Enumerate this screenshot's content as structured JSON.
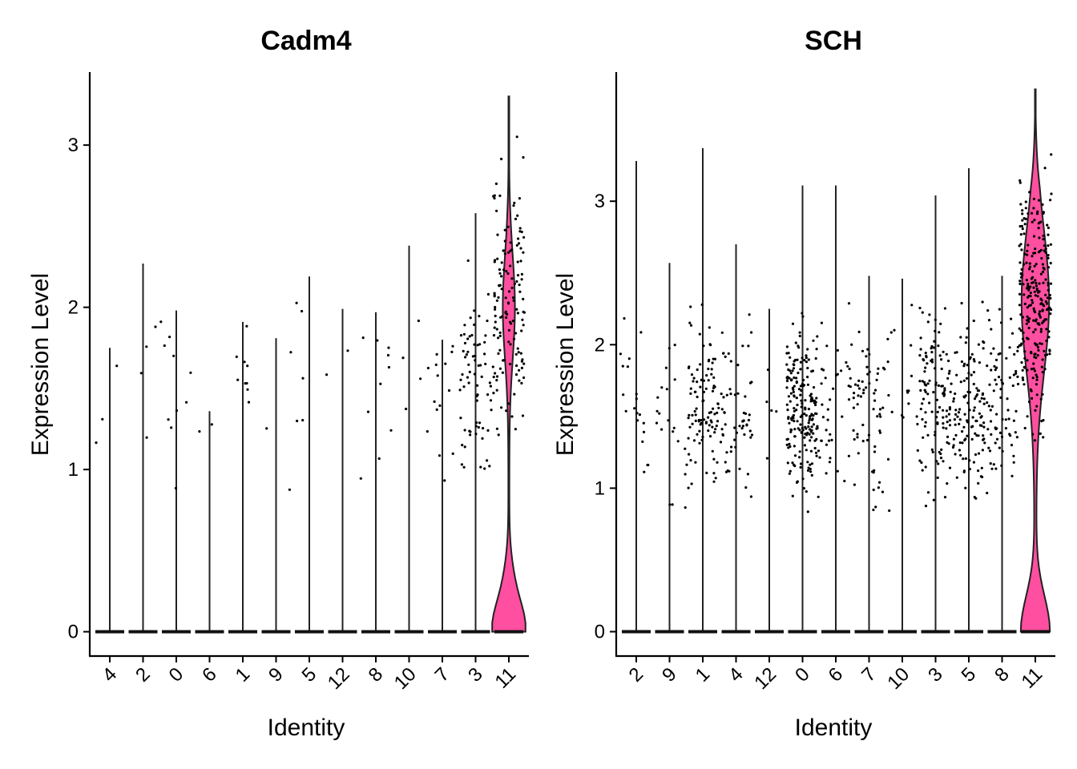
{
  "chart_data": [
    {
      "type": "violin",
      "title": "Cadm4",
      "xlabel": "Identity",
      "ylabel": "Expression Level",
      "categories": [
        "4",
        "2",
        "0",
        "6",
        "1",
        "9",
        "5",
        "12",
        "8",
        "10",
        "7",
        "3",
        "11"
      ],
      "yticks": [
        0,
        1,
        2,
        3
      ],
      "ylim": [
        -0.15,
        3.45
      ],
      "max_values": [
        1.75,
        2.27,
        1.98,
        1.36,
        1.91,
        1.81,
        2.19,
        1.99,
        1.97,
        2.38,
        1.8,
        2.58,
        3.3
      ],
      "nonzero_points": [
        3,
        4,
        10,
        2,
        9,
        3,
        5,
        2,
        10,
        4,
        15,
        70,
        140
      ],
      "highlight": {
        "category": "11",
        "color": "#FF4FA0"
      }
    },
    {
      "type": "violin",
      "title": "SCH",
      "xlabel": "Identity",
      "ylabel": "Expression Level",
      "categories": [
        "2",
        "9",
        "1",
        "4",
        "12",
        "0",
        "6",
        "7",
        "10",
        "3",
        "5",
        "8",
        "11"
      ],
      "yticks": [
        0,
        1,
        2,
        3
      ],
      "ylim": [
        -0.17,
        3.9
      ],
      "max_values": [
        3.28,
        2.57,
        3.37,
        2.7,
        2.25,
        3.11,
        3.11,
        2.48,
        2.46,
        3.04,
        3.23,
        2.48,
        3.78
      ],
      "nonzero_points": [
        20,
        20,
        100,
        60,
        5,
        200,
        40,
        60,
        20,
        120,
        120,
        80,
        260
      ],
      "highlight": {
        "category": "11",
        "color": "#FF4FA0"
      }
    }
  ]
}
